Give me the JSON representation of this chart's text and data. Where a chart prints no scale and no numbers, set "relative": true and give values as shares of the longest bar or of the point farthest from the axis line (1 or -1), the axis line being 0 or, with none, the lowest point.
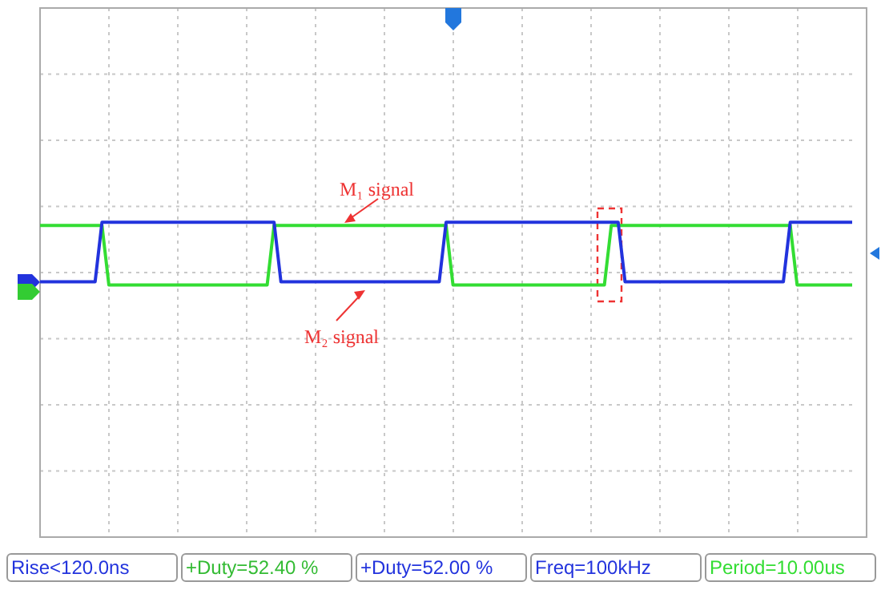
{
  "chart_data": {
    "type": "line",
    "relative": true,
    "grid": true,
    "line_style": "solid",
    "marker": "none",
    "categories": [
      null,
      null,
      null,
      null,
      null,
      null,
      null,
      null,
      null,
      null,
      null,
      null,
      null,
      null,
      null,
      null,
      null,
      null,
      null,
      null,
      null,
      null,
      null,
      null,
      null,
      null,
      null,
      null,
      null,
      null,
      null,
      null,
      null,
      null,
      null,
      null,
      null,
      null,
      null,
      null,
      null,
      null,
      null,
      null,
      null,
      null,
      null,
      null,
      null,
      null,
      null,
      null,
      null,
      null,
      null,
      null,
      null,
      null,
      null,
      null,
      null,
      null,
      null,
      null,
      null,
      null,
      null,
      null,
      null,
      null,
      null,
      null,
      null,
      null,
      null,
      null,
      null,
      null,
      null,
      null,
      null,
      null,
      null,
      null,
      null,
      null,
      null,
      null,
      null,
      null,
      null,
      null,
      null,
      null,
      null,
      null,
      null,
      null,
      null,
      null,
      null,
      null,
      null,
      null,
      null,
      null,
      null,
      null,
      null,
      null,
      null,
      null,
      null,
      null,
      null,
      null,
      null,
      null,
      null
    ],
    "series": [
      {
        "color": "#33dd33",
        "values": [
          0.99,
          0.99,
          0.99,
          0.99,
          0.99,
          0.99,
          0.99,
          0.99,
          0.99,
          0.99,
          0.8,
          0.8,
          0.8,
          0.8,
          0.8,
          0.8,
          0.8,
          0.8,
          0.8,
          0.8,
          0.8,
          0.8,
          0.8,
          0.8,
          0.8,
          0.8,
          0.8,
          0.8,
          0.8,
          0.8,
          0.8,
          0.8,
          0.8,
          0.8,
          0.99,
          0.99,
          0.99,
          0.99,
          0.99,
          0.99,
          0.99,
          0.99,
          0.99,
          0.99,
          0.99,
          0.99,
          0.99,
          0.99,
          0.99,
          0.99,
          0.99,
          0.99,
          0.99,
          0.99,
          0.99,
          0.99,
          0.99,
          0.99,
          0.99,
          0.99,
          0.8,
          0.8,
          0.8,
          0.8,
          0.8,
          0.8,
          0.8,
          0.8,
          0.8,
          0.8,
          0.8,
          0.8,
          0.8,
          0.8,
          0.8,
          0.8,
          0.8,
          0.8,
          0.8,
          0.8,
          0.8,
          0.8,
          0.8,
          0.99,
          0.99,
          0.99,
          0.99,
          0.99,
          0.99,
          0.99,
          0.99,
          0.99,
          0.99,
          0.99,
          0.99,
          0.99,
          0.99,
          0.99,
          0.99,
          0.99,
          0.99,
          0.99,
          0.99,
          0.99,
          0.99,
          0.99,
          0.99,
          0.99,
          0.99,
          0.99,
          0.8,
          0.8,
          0.8,
          0.8,
          0.8,
          0.8,
          0.8,
          0.8,
          0.8
        ]
      },
      {
        "color": "#2233dd",
        "values": [
          0.81,
          0.81,
          0.81,
          0.81,
          0.81,
          0.81,
          0.81,
          0.81,
          0.81,
          1,
          1,
          1,
          1,
          1,
          1,
          1,
          1,
          1,
          1,
          1,
          1,
          1,
          1,
          1,
          1,
          1,
          1,
          1,
          1,
          1,
          1,
          1,
          1,
          1,
          1,
          0.81,
          0.81,
          0.81,
          0.81,
          0.81,
          0.81,
          0.81,
          0.81,
          0.81,
          0.81,
          0.81,
          0.81,
          0.81,
          0.81,
          0.81,
          0.81,
          0.81,
          0.81,
          0.81,
          0.81,
          0.81,
          0.81,
          0.81,
          0.81,
          1,
          1,
          1,
          1,
          1,
          1,
          1,
          1,
          1,
          1,
          1,
          1,
          1,
          1,
          1,
          1,
          1,
          1,
          1,
          1,
          1,
          1,
          1,
          1,
          1,
          1,
          0.81,
          0.81,
          0.81,
          0.81,
          0.81,
          0.81,
          0.81,
          0.81,
          0.81,
          0.81,
          0.81,
          0.81,
          0.81,
          0.81,
          0.81,
          0.81,
          0.81,
          0.81,
          0.81,
          0.81,
          0.81,
          0.81,
          0.81,
          0.81,
          1,
          1,
          1,
          1,
          1,
          1,
          1,
          1,
          1,
          1
        ]
      }
    ],
    "annotations": [
      "M₁ signal",
      "M₂ signal",
      "Rise<120.0ns",
      "+Duty=52.40 %",
      "+Duty=52.00 %",
      "Freq=100kHz",
      "Period=10.00us"
    ]
  }
}
